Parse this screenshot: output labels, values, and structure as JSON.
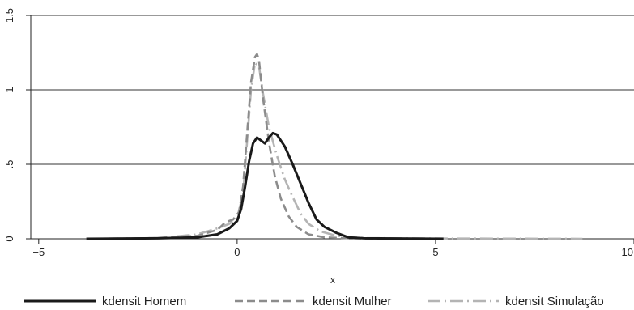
{
  "chart_data": {
    "type": "line",
    "title": "",
    "xlabel": "x",
    "ylabel": "",
    "xlim": [
      -5.2,
      10.0
    ],
    "ylim": [
      0,
      1.5
    ],
    "xticks": [
      -5,
      0,
      5,
      10
    ],
    "xtick_labels": [
      "−5",
      "0",
      "5",
      "10"
    ],
    "yticks": [
      0,
      0.5,
      1,
      1.5
    ],
    "ytick_labels": [
      "0",
      ".5",
      "1",
      "1.5"
    ],
    "grid": "horizontal",
    "legend_position": "bottom",
    "series": [
      {
        "name": "kdensit Homem",
        "color": "#1a1a1a",
        "dash": "solid",
        "points": [
          [
            -3.8,
            0
          ],
          [
            -2.0,
            0.003
          ],
          [
            -1.0,
            0.01
          ],
          [
            -0.5,
            0.03
          ],
          [
            -0.2,
            0.07
          ],
          [
            0.0,
            0.12
          ],
          [
            0.1,
            0.2
          ],
          [
            0.2,
            0.35
          ],
          [
            0.3,
            0.52
          ],
          [
            0.4,
            0.64
          ],
          [
            0.5,
            0.68
          ],
          [
            0.6,
            0.66
          ],
          [
            0.7,
            0.64
          ],
          [
            0.8,
            0.68
          ],
          [
            0.9,
            0.71
          ],
          [
            1.0,
            0.7
          ],
          [
            1.2,
            0.62
          ],
          [
            1.4,
            0.5
          ],
          [
            1.6,
            0.37
          ],
          [
            1.8,
            0.24
          ],
          [
            2.0,
            0.13
          ],
          [
            2.2,
            0.08
          ],
          [
            2.5,
            0.04
          ],
          [
            2.8,
            0.01
          ],
          [
            3.2,
            0.003
          ],
          [
            4.0,
            0.002
          ],
          [
            5.2,
            0.0
          ]
        ]
      },
      {
        "name": "kdensit Mulher",
        "color": "#8c8c8c",
        "dash": "dashed",
        "points": [
          [
            -3.5,
            0
          ],
          [
            -2.0,
            0.005
          ],
          [
            -1.0,
            0.02
          ],
          [
            -0.5,
            0.06
          ],
          [
            -0.3,
            0.11
          ],
          [
            -0.1,
            0.13
          ],
          [
            0.05,
            0.18
          ],
          [
            0.15,
            0.35
          ],
          [
            0.25,
            0.7
          ],
          [
            0.35,
            1.05
          ],
          [
            0.45,
            1.22
          ],
          [
            0.5,
            1.24
          ],
          [
            0.55,
            1.2
          ],
          [
            0.65,
            0.95
          ],
          [
            0.8,
            0.65
          ],
          [
            0.95,
            0.42
          ],
          [
            1.1,
            0.27
          ],
          [
            1.3,
            0.15
          ],
          [
            1.5,
            0.08
          ],
          [
            1.8,
            0.03
          ],
          [
            2.2,
            0.01
          ],
          [
            3.0,
            0.002
          ],
          [
            5.0,
            0.0
          ]
        ]
      },
      {
        "name": "kdensit Simulação",
        "color": "#b4b4b4",
        "dash": "dashdot",
        "points": [
          [
            -3.8,
            0
          ],
          [
            -2.0,
            0.005
          ],
          [
            -1.0,
            0.03
          ],
          [
            -0.5,
            0.07
          ],
          [
            -0.2,
            0.1
          ],
          [
            0.0,
            0.14
          ],
          [
            0.15,
            0.3
          ],
          [
            0.25,
            0.65
          ],
          [
            0.35,
            1.0
          ],
          [
            0.45,
            1.18
          ],
          [
            0.55,
            1.16
          ],
          [
            0.65,
            0.98
          ],
          [
            0.8,
            0.75
          ],
          [
            1.0,
            0.56
          ],
          [
            1.2,
            0.4
          ],
          [
            1.4,
            0.28
          ],
          [
            1.6,
            0.17
          ],
          [
            1.8,
            0.1
          ],
          [
            2.1,
            0.05
          ],
          [
            2.5,
            0.02
          ],
          [
            3.2,
            0.005
          ],
          [
            5.0,
            0.002
          ],
          [
            7.0,
            0.001
          ],
          [
            8.7,
            0.0
          ]
        ]
      }
    ]
  }
}
